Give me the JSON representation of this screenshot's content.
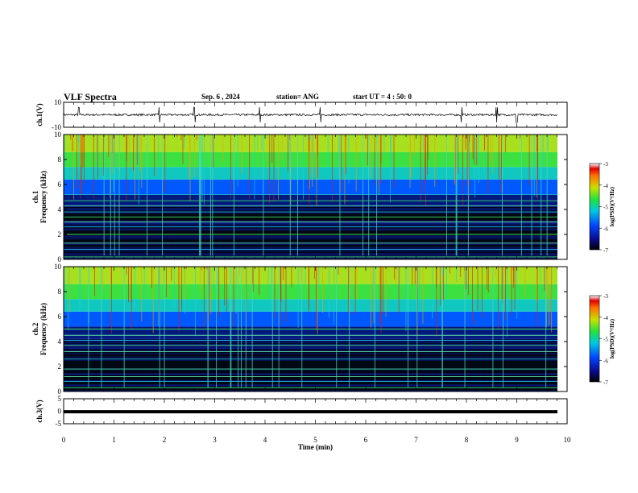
{
  "header": {
    "title": "VLF Spectra",
    "date": "Sep. 6 , 2024",
    "station": "station= ANG",
    "start": "start UT = 4 : 50: 0"
  },
  "chart_data": [
    {
      "type": "line",
      "panel": "ch1-waveform",
      "ylabel": "ch.1(V)",
      "ylim": [
        -10,
        10
      ],
      "yticks": [
        "10",
        "-10"
      ],
      "xlim": [
        0,
        10
      ],
      "data_extent_min": [
        0,
        9.8
      ],
      "description_values": {
        "baseline": 0,
        "typical_amplitude": 0.6,
        "spikes_at_min": [
          0.3,
          1.9,
          2.6,
          3.9,
          5.1,
          7.9,
          8.6,
          9.0
        ]
      }
    },
    {
      "type": "heatmap",
      "panel": "ch1-spectrogram",
      "ylabel": "ch.1\nFrequency (kHz)",
      "ylim": [
        0,
        10
      ],
      "yticks": [
        "0",
        "2",
        "4",
        "6",
        "8",
        "10"
      ],
      "xlim": [
        0,
        10
      ],
      "colorbar": {
        "label": "log(PSD)(V²/Hz)",
        "range": [
          -7,
          -3
        ],
        "ticks": [
          "-3",
          "-4",
          "-5",
          "-6",
          "-7"
        ]
      },
      "spectral_lines_khz": [
        0.2,
        0.8,
        1.3,
        2.0,
        2.6,
        3.0,
        3.4,
        3.8,
        4.3,
        4.7,
        5.2
      ]
    },
    {
      "type": "heatmap",
      "panel": "ch2-spectrogram",
      "ylabel": "ch.2\nFrequency (kHz)",
      "ylim": [
        0,
        10
      ],
      "yticks": [
        "0",
        "2",
        "4",
        "6",
        "8",
        "10"
      ],
      "xlim": [
        0,
        10
      ],
      "colorbar": {
        "label": "log(PSD)(V²/Hz)",
        "range": [
          -7,
          -3
        ],
        "ticks": [
          "-3",
          "-4",
          "-5",
          "-6",
          "-7"
        ]
      },
      "spectral_lines_khz": [
        0.3,
        0.8,
        1.2,
        1.8,
        2.6,
        3.2,
        3.7,
        4.1,
        4.5,
        5.0
      ]
    },
    {
      "type": "line",
      "panel": "ch3-waveform",
      "ylabel": "ch.3(V)",
      "ylim": [
        -5,
        5
      ],
      "yticks": [
        "5",
        "0",
        "-5"
      ],
      "xlim": [
        0,
        10
      ],
      "xlabel": "Time (min)",
      "xticks": [
        "0",
        "1",
        "2",
        "3",
        "4",
        "5",
        "6",
        "7",
        "8",
        "9",
        "10"
      ],
      "values_constant": -0.2
    }
  ]
}
